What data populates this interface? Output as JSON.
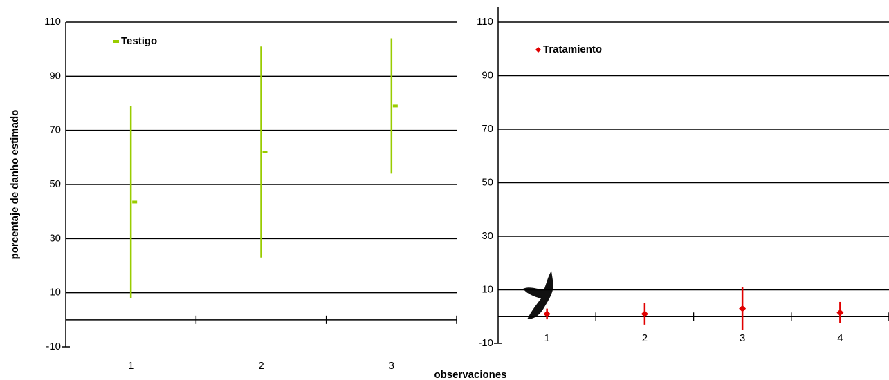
{
  "chart_data": [
    {
      "type": "errorbar",
      "ylabel": "porcentaje de danho estimado",
      "xlabel": "observaciones",
      "categories": [
        "1",
        "2",
        "3"
      ],
      "series": [
        {
          "name": "Testigo",
          "color": "#99cc00",
          "values": [
            43.5,
            62,
            79
          ],
          "errors": [
            35.5,
            39,
            25
          ]
        }
      ],
      "ylim": [
        -10,
        110
      ],
      "yticks": [
        -10,
        10,
        30,
        50,
        70,
        90,
        110
      ],
      "grid": true
    },
    {
      "type": "errorbar",
      "categories": [
        "1",
        "2",
        "3",
        "4"
      ],
      "series": [
        {
          "name": "Tratamiento",
          "color": "#e00000",
          "values": [
            1,
            1,
            3,
            1.5
          ],
          "errors": [
            2,
            4,
            8,
            4
          ]
        }
      ],
      "ylim": [
        -10,
        110
      ],
      "yticks": [
        -10,
        10,
        30,
        50,
        70,
        90,
        110
      ],
      "grid": true
    }
  ]
}
